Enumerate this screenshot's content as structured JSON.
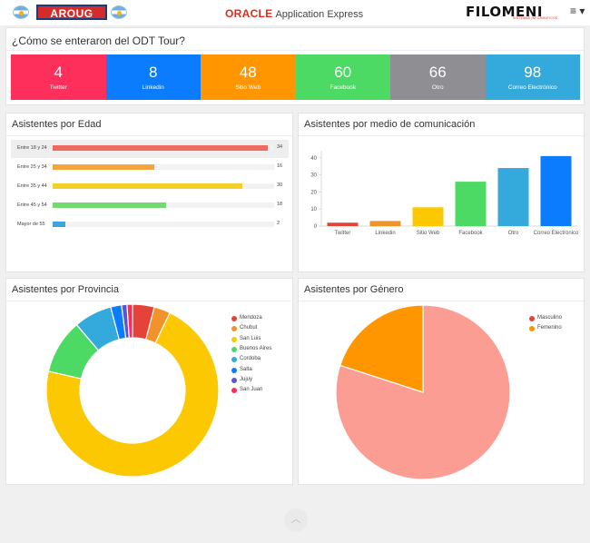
{
  "header": {
    "logo_left": "AROUG",
    "oracle_brand": "ORACLE",
    "oracle_product": "Application Express",
    "logo_right": "FILOMENI",
    "logo_right_sub": "SISTEMAS INFORMATICOS",
    "menu_glyph": "≡ ▾"
  },
  "survey": {
    "title": "¿Cómo se enteraron del ODT Tour?",
    "tiles": [
      {
        "value": "4",
        "label": "Twitter",
        "color": "#ff2f5b"
      },
      {
        "value": "8",
        "label": "Linkedin",
        "color": "#0c7cff"
      },
      {
        "value": "48",
        "label": "Sitio Web",
        "color": "#ff9600"
      },
      {
        "value": "60",
        "label": "Facebook",
        "color": "#4cd964"
      },
      {
        "value": "66",
        "label": "Otro",
        "color": "#8e8e93"
      },
      {
        "value": "98",
        "label": "Correo Electrónico",
        "color": "#34aadc"
      }
    ]
  },
  "age_panel": {
    "title": "Asistentes por Edad"
  },
  "media_panel": {
    "title": "Asistentes por medio de comunicación"
  },
  "province_panel": {
    "title": "Asistentes por Provincia"
  },
  "gender_panel": {
    "title": "Asistentes por Género"
  },
  "chart_data": [
    {
      "type": "bar",
      "orientation": "horizontal",
      "categories": [
        "Entre 18 y 24",
        "Entre 25 y 34",
        "Entre 35 y 44",
        "Entre 45 y 54",
        "Mayor de 55"
      ],
      "values": [
        34,
        16,
        30,
        18,
        2
      ],
      "colors": [
        "#ec6a5e",
        "#f4a63c",
        "#f5cf2c",
        "#74d873",
        "#3ca5df"
      ],
      "xlim": [
        0,
        35
      ]
    },
    {
      "type": "bar",
      "categories": [
        "Twitter",
        "Linkedin",
        "Sitio Web",
        "Facebook",
        "Otro",
        "Correo Electrónico"
      ],
      "values": [
        2,
        3,
        11,
        26,
        34,
        41
      ],
      "colors": [
        "#e5433a",
        "#f0932b",
        "#fcc802",
        "#4cd964",
        "#34aadc",
        "#0c7cff"
      ],
      "yticks": [
        0,
        10,
        20,
        30,
        40
      ],
      "ylim": [
        0,
        42
      ]
    },
    {
      "type": "pie",
      "variant": "donut",
      "categories": [
        "Mendoza",
        "Chubut",
        "San Luis",
        "Buenos Aires",
        "Cordoba",
        "Salta",
        "Jujuy",
        "San Juan"
      ],
      "values": [
        4,
        3,
        70,
        10,
        7,
        2,
        1,
        1
      ],
      "colors": [
        "#e5433a",
        "#f0932b",
        "#fcc802",
        "#4cd964",
        "#34aadc",
        "#0c7cff",
        "#5856d6",
        "#ff2d55"
      ],
      "legend": "right"
    },
    {
      "type": "pie",
      "categories": [
        "Masculino",
        "Femenino"
      ],
      "values": [
        80,
        20
      ],
      "colors": [
        "#fb9d92",
        "#ff9600"
      ],
      "legend_colors": [
        "#e5433a",
        "#ff9600"
      ],
      "legend": "top-right"
    }
  ]
}
